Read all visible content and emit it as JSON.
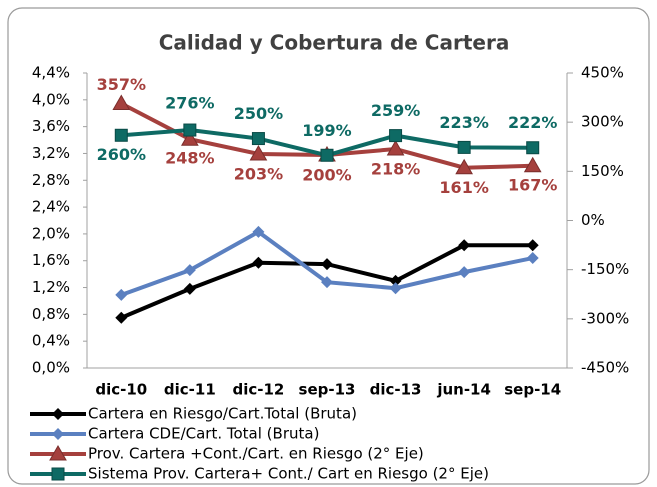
{
  "chart_data": {
    "type": "line",
    "title": "Calidad y Cobertura de Cartera",
    "categories": [
      "dic-10",
      "dic-11",
      "dic-12",
      "sep-13",
      "dic-13",
      "jun-14",
      "sep-14"
    ],
    "series": [
      {
        "name": "Cartera en Riesgo/Cart.Total (Bruta)",
        "color": "#000000",
        "marker": "diamond",
        "values": [
          0.75,
          1.18,
          1.57,
          1.55,
          1.3,
          1.83,
          1.83
        ]
      },
      {
        "name": "Cartera CDE/Cart. Total (Bruta)",
        "color": "#5b80c0",
        "marker": "diamond",
        "values": [
          1.09,
          1.46,
          2.03,
          1.28,
          1.19,
          1.43,
          1.64
        ]
      },
      {
        "name": "Prov. Cartera +Cont./Cart. en Riesgo (2° Eje)",
        "color": "#a5403d",
        "marker": "triangle",
        "axis": "y2",
        "values": [
          357,
          248,
          203,
          200,
          218,
          161,
          167
        ],
        "value_labels": [
          "357%",
          "248%",
          "203%",
          "200%",
          "218%",
          "161%",
          "167%"
        ]
      },
      {
        "name": "Sistema Prov. Cartera+ Cont./ Cart en Riesgo (2° Eje)",
        "color": "#0e6a64",
        "marker": "square",
        "axis": "y2",
        "values": [
          260,
          276,
          250,
          199,
          259,
          223,
          222
        ],
        "value_labels": [
          "260%",
          "276%",
          "250%",
          "199%",
          "259%",
          "223%",
          "222%"
        ]
      }
    ],
    "ylim": [
      0,
      4.4
    ],
    "yticks": [
      {
        "value": 0,
        "label": "0,0%"
      },
      {
        "value": 0.4,
        "label": "0,4%"
      },
      {
        "value": 0.8,
        "label": "0,8%"
      },
      {
        "value": 1.2,
        "label": "1,2%"
      },
      {
        "value": 1.6,
        "label": "1,6%"
      },
      {
        "value": 2.0,
        "label": "2,0%"
      },
      {
        "value": 2.4,
        "label": "2,4%"
      },
      {
        "value": 2.8,
        "label": "2,8%"
      },
      {
        "value": 3.2,
        "label": "3,2%"
      },
      {
        "value": 3.6,
        "label": "3,6%"
      },
      {
        "value": 4.0,
        "label": "4,0%"
      },
      {
        "value": 4.4,
        "label": "4,4%"
      }
    ],
    "y2lim": [
      -450,
      450
    ],
    "y2ticks": [
      {
        "value": -450,
        "label": "-450%"
      },
      {
        "value": -300,
        "label": "-300%"
      },
      {
        "value": -150,
        "label": "-150%"
      },
      {
        "value": 0,
        "label": "0%"
      },
      {
        "value": 150,
        "label": "150%"
      },
      {
        "value": 300,
        "label": "300%"
      },
      {
        "value": 450,
        "label": "450%"
      }
    ],
    "legend": "bottom"
  }
}
